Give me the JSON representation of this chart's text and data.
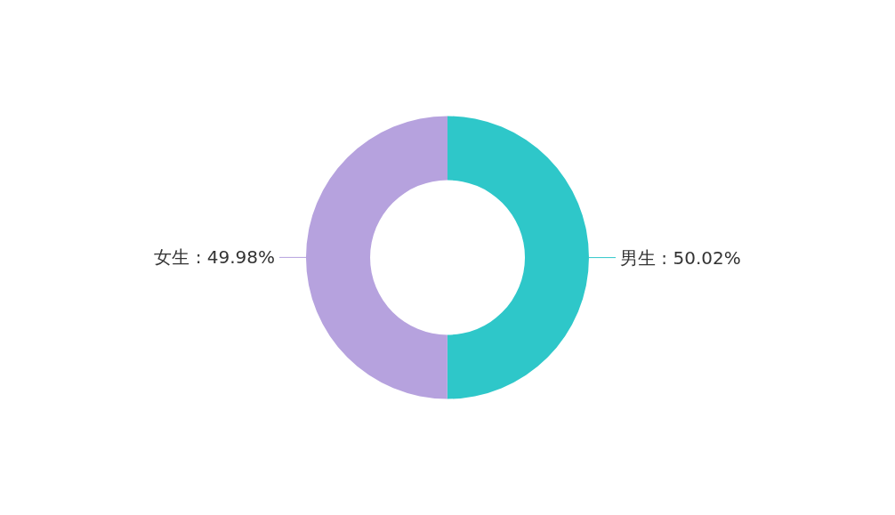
{
  "chart_data": {
    "type": "donut",
    "categories": [
      "男生",
      "女生"
    ],
    "values": [
      50.02,
      49.98
    ],
    "value_labels": [
      ": 50.02%",
      ": 49.98%"
    ],
    "colors": [
      "#2ec7c9",
      "#b6a2de"
    ],
    "legend": false
  }
}
